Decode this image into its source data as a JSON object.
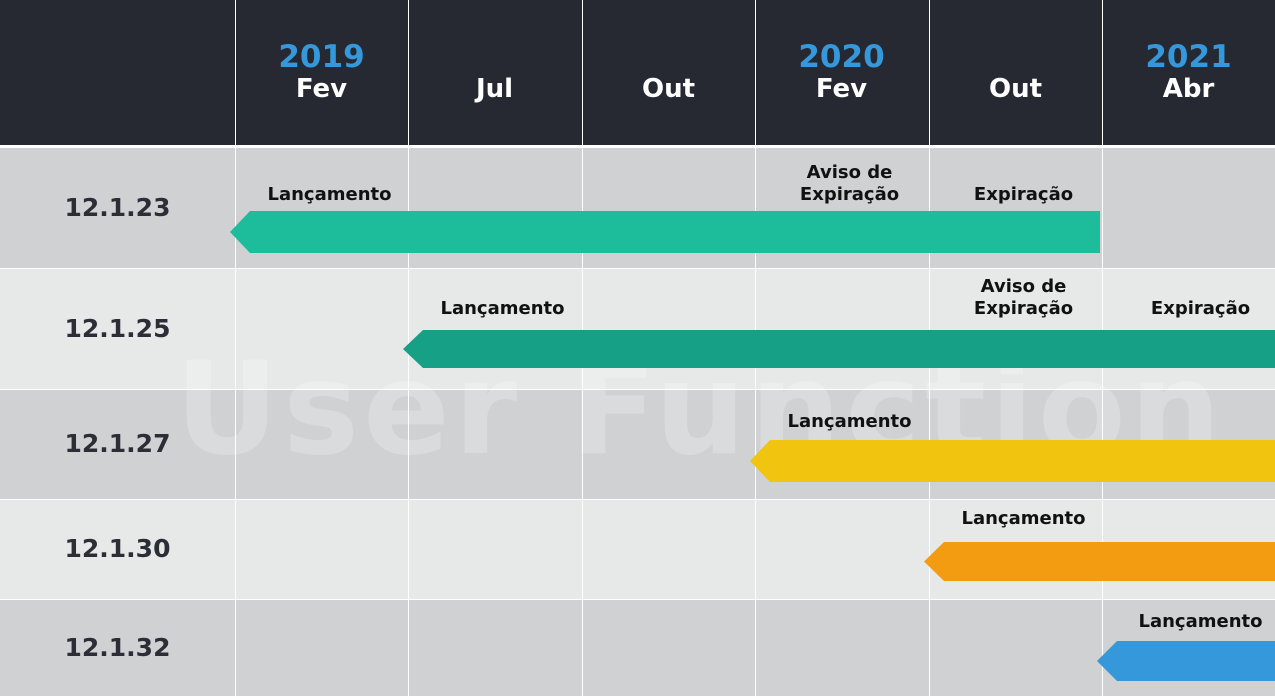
{
  "colors": {
    "header_bg": "#262932",
    "year_text": "#3498db",
    "month_text": "#ffffff",
    "row_dark": "#d0d1d3",
    "row_light": "#e7e8e8",
    "grid_line": "#ffffff",
    "label_text": "#2b2e36"
  },
  "columns": [
    {
      "year": "2019",
      "month": "Fev"
    },
    {
      "year": "",
      "month": "Jul"
    },
    {
      "year": "",
      "month": "Out"
    },
    {
      "year": "2020",
      "month": "Fev"
    },
    {
      "year": "",
      "month": "Out"
    },
    {
      "year": "2021",
      "month": "Abr"
    }
  ],
  "rows": [
    {
      "version": "12.1.23",
      "bar": {
        "start_col": 0,
        "end_col": 5,
        "extends_past_end": false,
        "color": "#1dbd9b"
      },
      "milestones": [
        {
          "text": "Lançamento",
          "col": 0
        },
        {
          "text": "Aviso de\nExpiração",
          "col": 3
        },
        {
          "text": "Expiração",
          "col": 4
        }
      ]
    },
    {
      "version": "12.1.25",
      "bar": {
        "start_col": 1,
        "end_col": 6,
        "extends_past_end": true,
        "color": "#16a086"
      },
      "milestones": [
        {
          "text": "Lançamento",
          "col": 1
        },
        {
          "text": "Aviso de\nExpiração",
          "col": 4
        },
        {
          "text": "Expiração",
          "col": 5
        }
      ]
    },
    {
      "version": "12.1.27",
      "bar": {
        "start_col": 3,
        "end_col": 6,
        "extends_past_end": true,
        "color": "#f1c40f"
      },
      "milestones": [
        {
          "text": "Lançamento",
          "col": 3
        }
      ]
    },
    {
      "version": "12.1.30",
      "bar": {
        "start_col": 4,
        "end_col": 6,
        "extends_past_end": true,
        "color": "#f39c12"
      },
      "milestones": [
        {
          "text": "Lançamento",
          "col": 4
        }
      ]
    },
    {
      "version": "12.1.32",
      "bar": {
        "start_col": 5,
        "end_col": 6,
        "extends_past_end": true,
        "color": "#3498db"
      },
      "milestones": [
        {
          "text": "Lançamento",
          "col": 5
        }
      ]
    }
  ],
  "watermark": "User Function"
}
